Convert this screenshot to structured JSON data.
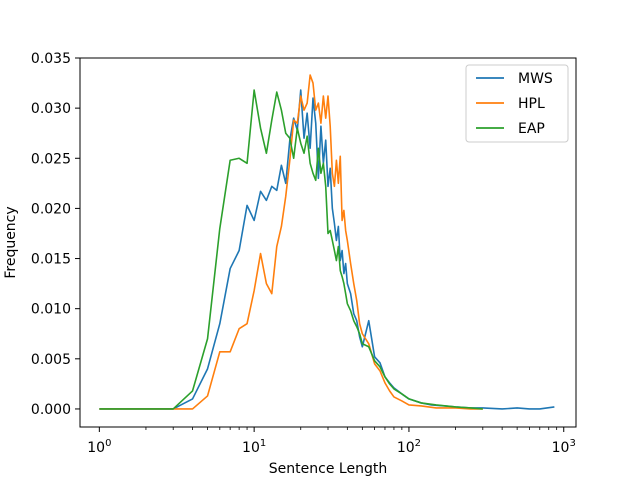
{
  "chart_data": {
    "type": "line",
    "title": "",
    "xlabel": "Sentence Length",
    "ylabel": "Frequency",
    "xscale": "log",
    "xlim": [
      0.75,
      1200
    ],
    "ylim": [
      -0.0018,
      0.035
    ],
    "x_ticks": [
      1,
      10,
      100,
      1000
    ],
    "x_tick_labels": [
      {
        "base": "10",
        "exp": "0"
      },
      {
        "base": "10",
        "exp": "1"
      },
      {
        "base": "10",
        "exp": "2"
      },
      {
        "base": "10",
        "exp": "3"
      }
    ],
    "y_ticks": [
      0.0,
      0.005,
      0.01,
      0.015,
      0.02,
      0.025,
      0.03,
      0.035
    ],
    "y_tick_labels": [
      "0.000",
      "0.005",
      "0.010",
      "0.015",
      "0.020",
      "0.025",
      "0.030",
      "0.035"
    ],
    "grid": false,
    "legend_position": "top-right",
    "series": [
      {
        "name": "MWS",
        "color": "#1f77b4",
        "points": [
          [
            1,
            0.0
          ],
          [
            2,
            0.0
          ],
          [
            3,
            0.0
          ],
          [
            4,
            0.001
          ],
          [
            5,
            0.004
          ],
          [
            6,
            0.0085
          ],
          [
            7,
            0.014
          ],
          [
            8,
            0.0158
          ],
          [
            9,
            0.0203
          ],
          [
            10,
            0.0188
          ],
          [
            11,
            0.0217
          ],
          [
            12,
            0.0208
          ],
          [
            13,
            0.0222
          ],
          [
            14,
            0.0218
          ],
          [
            15,
            0.0243
          ],
          [
            16,
            0.0225
          ],
          [
            17,
            0.0268
          ],
          [
            18,
            0.029
          ],
          [
            19,
            0.0278
          ],
          [
            20,
            0.0318
          ],
          [
            21,
            0.027
          ],
          [
            22,
            0.0295
          ],
          [
            23,
            0.026
          ],
          [
            24,
            0.031
          ],
          [
            25,
            0.0285
          ],
          [
            26,
            0.023
          ],
          [
            27,
            0.0282
          ],
          [
            28,
            0.0245
          ],
          [
            29,
            0.0268
          ],
          [
            30,
            0.0222
          ],
          [
            31,
            0.024
          ],
          [
            32,
            0.02
          ],
          [
            33,
            0.0185
          ],
          [
            34,
            0.0168
          ],
          [
            35,
            0.0182
          ],
          [
            36,
            0.0148
          ],
          [
            37,
            0.0158
          ],
          [
            38,
            0.0135
          ],
          [
            39,
            0.0145
          ],
          [
            40,
            0.0125
          ],
          [
            42,
            0.0115
          ],
          [
            44,
            0.0095
          ],
          [
            46,
            0.0088
          ],
          [
            48,
            0.0072
          ],
          [
            50,
            0.0062
          ],
          [
            55,
            0.0088
          ],
          [
            60,
            0.0052
          ],
          [
            65,
            0.0046
          ],
          [
            70,
            0.0032
          ],
          [
            75,
            0.0026
          ],
          [
            80,
            0.0021
          ],
          [
            90,
            0.0015
          ],
          [
            100,
            0.001
          ],
          [
            120,
            0.0006
          ],
          [
            140,
            0.0004
          ],
          [
            170,
            0.0003
          ],
          [
            200,
            0.0002
          ],
          [
            250,
            0.0001
          ],
          [
            300,
            0.0001
          ],
          [
            400,
            0.0
          ],
          [
            500,
            0.0001
          ],
          [
            600,
            0.0
          ],
          [
            700,
            0.0
          ],
          [
            870,
            0.0002
          ]
        ]
      },
      {
        "name": "HPL",
        "color": "#ff7f0e",
        "points": [
          [
            1,
            0.0
          ],
          [
            2,
            0.0
          ],
          [
            3,
            0.0
          ],
          [
            4,
            0.0
          ],
          [
            5,
            0.0013
          ],
          [
            6,
            0.0057
          ],
          [
            7,
            0.0057
          ],
          [
            8,
            0.008
          ],
          [
            9,
            0.0085
          ],
          [
            10,
            0.0118
          ],
          [
            11,
            0.0155
          ],
          [
            12,
            0.0125
          ],
          [
            13,
            0.0115
          ],
          [
            14,
            0.0162
          ],
          [
            15,
            0.0182
          ],
          [
            16,
            0.0212
          ],
          [
            17,
            0.0248
          ],
          [
            18,
            0.0288
          ],
          [
            19,
            0.0285
          ],
          [
            20,
            0.0312
          ],
          [
            21,
            0.0298
          ],
          [
            22,
            0.0305
          ],
          [
            23,
            0.0333
          ],
          [
            24,
            0.0325
          ],
          [
            25,
            0.0298
          ],
          [
            26,
            0.0305
          ],
          [
            27,
            0.0285
          ],
          [
            28,
            0.0312
          ],
          [
            29,
            0.029
          ],
          [
            30,
            0.0312
          ],
          [
            31,
            0.0282
          ],
          [
            32,
            0.0235
          ],
          [
            33,
            0.0222
          ],
          [
            34,
            0.0248
          ],
          [
            35,
            0.0225
          ],
          [
            36,
            0.0252
          ],
          [
            37,
            0.0188
          ],
          [
            38,
            0.0198
          ],
          [
            39,
            0.0178
          ],
          [
            40,
            0.0168
          ],
          [
            42,
            0.0145
          ],
          [
            44,
            0.0125
          ],
          [
            46,
            0.0108
          ],
          [
            48,
            0.0085
          ],
          [
            50,
            0.0075
          ],
          [
            55,
            0.0065
          ],
          [
            60,
            0.0045
          ],
          [
            65,
            0.0038
          ],
          [
            70,
            0.0026
          ],
          [
            75,
            0.0018
          ],
          [
            80,
            0.0012
          ],
          [
            90,
            0.0008
          ],
          [
            100,
            0.0004
          ],
          [
            120,
            0.0003
          ],
          [
            150,
            0.0001
          ],
          [
            200,
            0.0001
          ],
          [
            250,
            0.0
          ],
          [
            300,
            0.0
          ]
        ]
      },
      {
        "name": "EAP",
        "color": "#2ca02c",
        "points": [
          [
            1,
            0.0
          ],
          [
            2,
            0.0
          ],
          [
            3,
            0.0
          ],
          [
            4,
            0.0018
          ],
          [
            5,
            0.007
          ],
          [
            6,
            0.018
          ],
          [
            7,
            0.0248
          ],
          [
            8,
            0.025
          ],
          [
            9,
            0.0245
          ],
          [
            10,
            0.0318
          ],
          [
            11,
            0.028
          ],
          [
            12,
            0.0255
          ],
          [
            13,
            0.0288
          ],
          [
            14,
            0.0316
          ],
          [
            15,
            0.0298
          ],
          [
            16,
            0.0275
          ],
          [
            17,
            0.027
          ],
          [
            18,
            0.025
          ],
          [
            19,
            0.028
          ],
          [
            20,
            0.0265
          ],
          [
            21,
            0.0255
          ],
          [
            22,
            0.0272
          ],
          [
            23,
            0.0245
          ],
          [
            24,
            0.0235
          ],
          [
            25,
            0.0228
          ],
          [
            26,
            0.026
          ],
          [
            27,
            0.0235
          ],
          [
            28,
            0.0245
          ],
          [
            29,
            0.0222
          ],
          [
            30,
            0.0175
          ],
          [
            31,
            0.0178
          ],
          [
            32,
            0.0168
          ],
          [
            33,
            0.0158
          ],
          [
            34,
            0.0148
          ],
          [
            35,
            0.0162
          ],
          [
            36,
            0.0138
          ],
          [
            37,
            0.0132
          ],
          [
            38,
            0.0125
          ],
          [
            39,
            0.0115
          ],
          [
            40,
            0.0105
          ],
          [
            42,
            0.0098
          ],
          [
            44,
            0.0088
          ],
          [
            46,
            0.0082
          ],
          [
            48,
            0.0075
          ],
          [
            50,
            0.0065
          ],
          [
            55,
            0.0062
          ],
          [
            60,
            0.0048
          ],
          [
            65,
            0.0042
          ],
          [
            70,
            0.0032
          ],
          [
            75,
            0.0025
          ],
          [
            80,
            0.002
          ],
          [
            90,
            0.0015
          ],
          [
            100,
            0.001
          ],
          [
            120,
            0.0006
          ],
          [
            150,
            0.0004
          ],
          [
            200,
            0.0002
          ],
          [
            250,
            0.0001
          ],
          [
            300,
            0.0
          ]
        ]
      }
    ]
  }
}
